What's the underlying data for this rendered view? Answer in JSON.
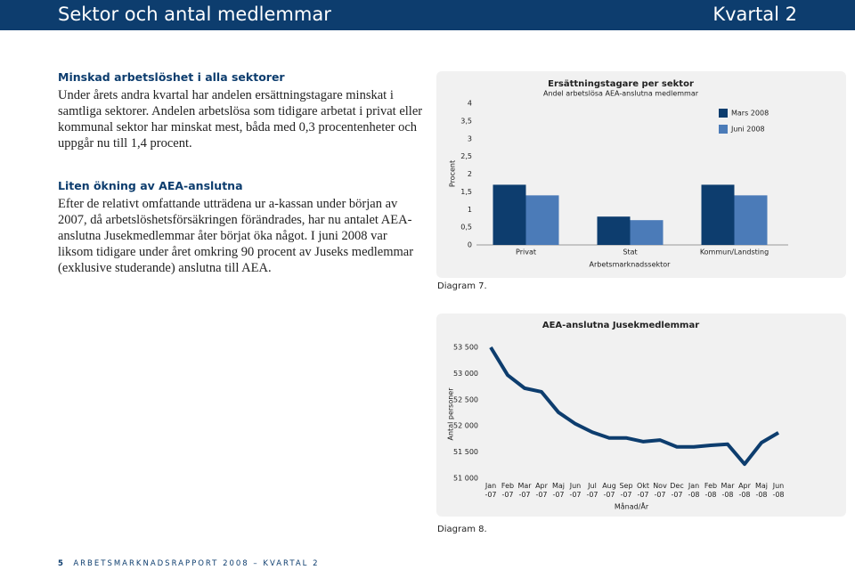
{
  "header": {
    "title": "Sektor och antal medlemmar",
    "quarter": "Kvartal 2"
  },
  "sections": [
    {
      "heading": "Minskad arbetslöshet i alla sektorer",
      "text": "Under årets andra kvartal har andelen ersättningstagare minskat i samtliga sektorer. Andelen arbetslösa som tidigare arbetat i privat eller kommunal sektor har minskat mest, båda med 0,3 procentenheter och uppgår nu till 1,4 procent."
    },
    {
      "heading": "Liten ökning av AEA-anslutna",
      "text": "Efter de relativt omfattande utträdena ur a-kassan under början av 2007, då arbetslöshetsförsäkringen förändrades, har nu antalet AEA-anslutna Jusekmedlemmar åter börjat öka något. I juni 2008 var liksom tidigare under året omkring 90 procent av Juseks medlemmar (exklusive studerande) anslutna till AEA."
    }
  ],
  "chart_data": [
    {
      "type": "bar",
      "title": "Ersättningstagare per sektor",
      "subtitle": "Andel arbetslösa AEA-anslutna medlemmar",
      "y_label": "Procent",
      "x_label": "Arbetsmarknadssektor",
      "caption": "Diagram 7.",
      "categories": [
        "Privat",
        "Stat",
        "Kommun/Landsting"
      ],
      "series": [
        {
          "name": "Mars 2008",
          "color": "#0d3d6e",
          "values": [
            1.7,
            0.8,
            1.7
          ]
        },
        {
          "name": "Juni 2008",
          "color": "#4b7bb8",
          "values": [
            1.4,
            0.7,
            1.4
          ]
        }
      ],
      "ylim": [
        0,
        4
      ],
      "yticks": [
        0,
        {
          "value": 0.5,
          "label": "0,5"
        },
        1,
        {
          "value": 1.5,
          "label": "1,5"
        },
        2,
        {
          "value": 2.5,
          "label": "2,5"
        },
        3,
        {
          "value": 3.5,
          "label": "3,5"
        },
        4
      ],
      "legend": "top-right"
    },
    {
      "type": "line",
      "title": "AEA-anslutna Jusekmedlemmar",
      "y_label": "Antal personer",
      "x_label": "Månad/År",
      "caption": "Diagram 8.",
      "categories": [
        "Jan -07",
        "Feb -07",
        "Mar -07",
        "Apr -07",
        "Maj -07",
        "Jun -07",
        "Jul -07",
        "Aug -07",
        "Sep -07",
        "Okt -07",
        "Nov -07",
        "Dec -07",
        "Jan -08",
        "Feb -08",
        "Mar -08",
        "Apr -08",
        "Maj -08",
        "Jun -08"
      ],
      "color": "#0d3d6e",
      "values": [
        53500,
        52970,
        52720,
        52650,
        52260,
        52040,
        51880,
        51770,
        51770,
        51700,
        51730,
        51600,
        51600,
        51630,
        51650,
        51270,
        51680,
        51870
      ],
      "ylim": [
        51000,
        53500
      ],
      "yticks": [
        {
          "value": 51000,
          "label": "51 000"
        },
        {
          "value": 51500,
          "label": "51 500"
        },
        {
          "value": 52000,
          "label": "52 000"
        },
        {
          "value": 52500,
          "label": "52 500"
        },
        {
          "value": 53000,
          "label": "53 000"
        },
        {
          "value": 53500,
          "label": "53 500"
        }
      ]
    }
  ],
  "footer": {
    "page": "5",
    "text": "ARBETSMARKNADSRAPPORT 2008 – KVARTAL 2"
  }
}
